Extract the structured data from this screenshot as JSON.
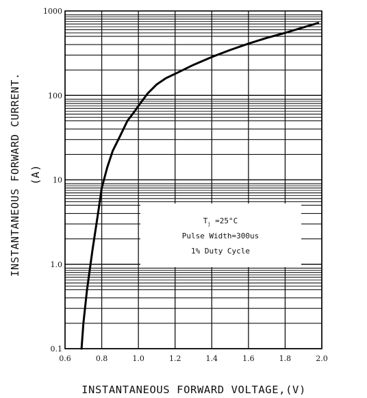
{
  "chart_data": {
    "type": "line",
    "title": "",
    "xlabel": "INSTANTANEOUS FORWARD VOLTAGE,(V)",
    "ylabel": "INSTANTANEOUS FORWARD CURRENT.",
    "ylabel_unit": "(A)",
    "xscale": "linear",
    "yscale": "log",
    "xlim": [
      0.6,
      2.0
    ],
    "ylim": [
      0.1,
      1000
    ],
    "grid": true,
    "x_ticks": [
      0.6,
      0.8,
      1.0,
      1.2,
      1.4,
      1.6,
      1.8,
      2.0
    ],
    "x_tick_labels": [
      "0.6",
      "0.8",
      "1.0",
      "1.2",
      "1.4",
      "1.6",
      "1.8",
      "2.0"
    ],
    "y_ticks": [
      0.1,
      1,
      10,
      100,
      1000
    ],
    "y_tick_labels": [
      "0.1",
      "1.0",
      "10",
      "100",
      "1000"
    ],
    "annotation": {
      "line1_main": "T",
      "line1_sub": "j",
      "line1_rest": " =25°C",
      "line2": "Pulse Width=300us",
      "line3": "1% Duty Cycle"
    },
    "series": [
      {
        "x": [
          0.69,
          0.7,
          0.72,
          0.75,
          0.78,
          0.8,
          0.83,
          0.86,
          0.9,
          0.94,
          0.98,
          1.0,
          1.05,
          1.1,
          1.15,
          1.2,
          1.3,
          1.4,
          1.5,
          1.6,
          1.7,
          1.8,
          1.9,
          1.98
        ],
        "y": [
          0.1,
          0.2,
          0.5,
          1.5,
          4,
          8,
          14,
          22,
          33,
          50,
          65,
          75,
          105,
          135,
          160,
          180,
          230,
          285,
          345,
          410,
          480,
          550,
          640,
          720
        ]
      }
    ],
    "colors": {
      "line": "#000000",
      "grid": "#111111",
      "background": "#ffffff"
    }
  }
}
